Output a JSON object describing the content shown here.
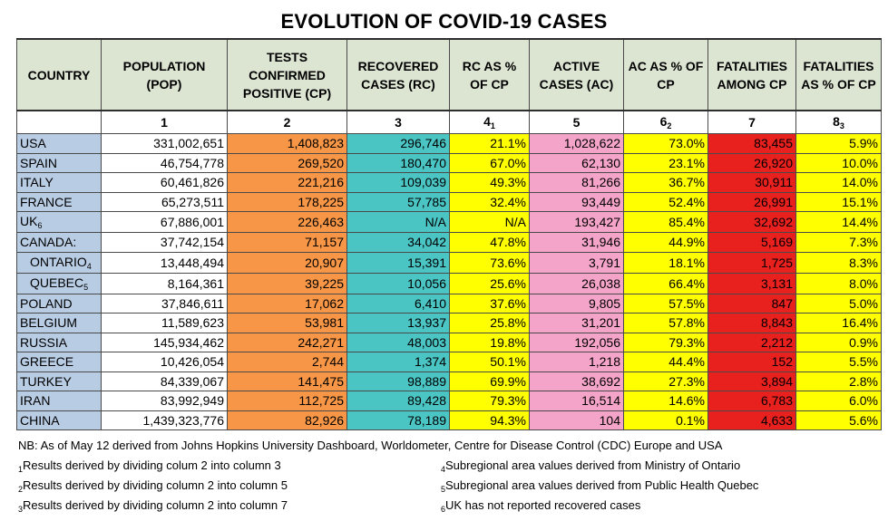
{
  "title": "EVOLUTION OF COVID-19 CASES",
  "columns": [
    {
      "label": "COUNTRY",
      "num": ""
    },
    {
      "label": "POPULATION (POP)",
      "num": "1"
    },
    {
      "label": "TESTS CONFIRMED POSITIVE (CP)",
      "num": "2"
    },
    {
      "label": "RECOVERED CASES (RC)",
      "num": "3"
    },
    {
      "label": "RC AS % OF CP",
      "num": "4",
      "num_sub": "1"
    },
    {
      "label": "ACTIVE CASES (AC)",
      "num": "5"
    },
    {
      "label": "AC AS % OF CP",
      "num": "6",
      "num_sub": "2"
    },
    {
      "label": "FATALITIES AMONG CP",
      "num": "7"
    },
    {
      "label": "FATALITIES AS % OF CP",
      "num": "8",
      "num_sub": "3"
    }
  ],
  "header_lines": [
    [
      "COUNTRY"
    ],
    [
      "POPULATION",
      "(POP)"
    ],
    [
      "TESTS",
      "CONFIRMED",
      "POSITIVE (CP)"
    ],
    [
      "RECOVERED",
      "CASES (RC)"
    ],
    [
      "RC AS %",
      "OF CP"
    ],
    [
      "ACTIVE",
      "CASES (AC)"
    ],
    [
      "AC AS % OF",
      "CP"
    ],
    [
      "FATALITIES",
      "AMONG CP"
    ],
    [
      "FATALITIES",
      "AS % OF CP"
    ]
  ],
  "rows": [
    {
      "country": "USA",
      "country_sub": "",
      "indent": false,
      "pop": "331,002,651",
      "cp": "1,408,823",
      "rc": "296,746",
      "rc_pct": "21.1%",
      "ac": "1,028,622",
      "ac_pct": "73.0%",
      "fat": "83,455",
      "fat_pct": "5.9%"
    },
    {
      "country": "SPAIN",
      "country_sub": "",
      "indent": false,
      "pop": "46,754,778",
      "cp": "269,520",
      "rc": "180,470",
      "rc_pct": "67.0%",
      "ac": "62,130",
      "ac_pct": "23.1%",
      "fat": "26,920",
      "fat_pct": "10.0%"
    },
    {
      "country": "ITALY",
      "country_sub": "",
      "indent": false,
      "pop": "60,461,826",
      "cp": "221,216",
      "rc": "109,039",
      "rc_pct": "49.3%",
      "ac": "81,266",
      "ac_pct": "36.7%",
      "fat": "30,911",
      "fat_pct": "14.0%"
    },
    {
      "country": "FRANCE",
      "country_sub": "",
      "indent": false,
      "pop": "65,273,511",
      "cp": "178,225",
      "rc": "57,785",
      "rc_pct": "32.4%",
      "ac": "93,449",
      "ac_pct": "52.4%",
      "fat": "26,991",
      "fat_pct": "15.1%"
    },
    {
      "country": "UK",
      "country_sub": "6",
      "indent": false,
      "pop": "67,886,001",
      "cp": "226,463",
      "rc": "N/A",
      "rc_pct": "N/A",
      "ac": "193,427",
      "ac_pct": "85.4%",
      "fat": "32,692",
      "fat_pct": "14.4%"
    },
    {
      "country": "CANADA:",
      "country_sub": "",
      "indent": false,
      "pop": "37,742,154",
      "cp": "71,157",
      "rc": "34,042",
      "rc_pct": "47.8%",
      "ac": "31,946",
      "ac_pct": "44.9%",
      "fat": "5,169",
      "fat_pct": "7.3%"
    },
    {
      "country": "ONTARIO",
      "country_sub": "4",
      "indent": true,
      "pop": "13,448,494",
      "cp": "20,907",
      "rc": "15,391",
      "rc_pct": "73.6%",
      "ac": "3,791",
      "ac_pct": "18.1%",
      "fat": "1,725",
      "fat_pct": "8.3%"
    },
    {
      "country": "QUEBEC",
      "country_sub": "5",
      "indent": true,
      "pop": "8,164,361",
      "cp": "39,225",
      "rc": "10,056",
      "rc_pct": "25.6%",
      "ac": "26,038",
      "ac_pct": "66.4%",
      "fat": "3,131",
      "fat_pct": "8.0%"
    },
    {
      "country": "POLAND",
      "country_sub": "",
      "indent": false,
      "pop": "37,846,611",
      "cp": "17,062",
      "rc": "6,410",
      "rc_pct": "37.6%",
      "ac": "9,805",
      "ac_pct": "57.5%",
      "fat": "847",
      "fat_pct": "5.0%"
    },
    {
      "country": "BELGIUM",
      "country_sub": "",
      "indent": false,
      "pop": "11,589,623",
      "cp": "53,981",
      "rc": "13,937",
      "rc_pct": "25.8%",
      "ac": "31,201",
      "ac_pct": "57.8%",
      "fat": "8,843",
      "fat_pct": "16.4%"
    },
    {
      "country": "RUSSIA",
      "country_sub": "",
      "indent": false,
      "pop": "145,934,462",
      "cp": "242,271",
      "rc": "48,003",
      "rc_pct": "19.8%",
      "ac": "192,056",
      "ac_pct": "79.3%",
      "fat": "2,212",
      "fat_pct": "0.9%"
    },
    {
      "country": "GREECE",
      "country_sub": "",
      "indent": false,
      "pop": "10,426,054",
      "cp": "2,744",
      "rc": "1,374",
      "rc_pct": "50.1%",
      "ac": "1,218",
      "ac_pct": "44.4%",
      "fat": "152",
      "fat_pct": "5.5%"
    },
    {
      "country": "TURKEY",
      "country_sub": "",
      "indent": false,
      "pop": "84,339,067",
      "cp": "141,475",
      "rc": "98,889",
      "rc_pct": "69.9%",
      "ac": "38,692",
      "ac_pct": "27.3%",
      "fat": "3,894",
      "fat_pct": "2.8%"
    },
    {
      "country": "IRAN",
      "country_sub": "",
      "indent": false,
      "pop": "83,992,949",
      "cp": "112,725",
      "rc": "89,428",
      "rc_pct": "79.3%",
      "ac": "16,514",
      "ac_pct": "14.6%",
      "fat": "6,783",
      "fat_pct": "6.0%"
    },
    {
      "country": "CHINA",
      "country_sub": "",
      "indent": false,
      "pop": "1,439,323,776",
      "cp": "82,926",
      "rc": "78,189",
      "rc_pct": "94.3%",
      "ac": "104",
      "ac_pct": "0.1%",
      "fat": "4,633",
      "fat_pct": "5.6%"
    }
  ],
  "notes": {
    "nb": "NB: As of May 12  derived from Johns Hopkins University Dashboard, Worldometer, Centre for Disease Control (CDC) Europe and USA",
    "footnotes": [
      {
        "mark": "1",
        "text": "Results derived by dividing colum 2 into column 3"
      },
      {
        "mark": "2",
        "text": "Results derived by dividing column 2 into column 5"
      },
      {
        "mark": "3",
        "text": "Results derived by dividing column 2 into column 7"
      },
      {
        "mark": "4",
        "text": "Subregional area values derived from Ministry of Ontario"
      },
      {
        "mark": "5",
        "text": "Subregional area values derived from Public Health Quebec"
      },
      {
        "mark": "6",
        "text": "UK has not reported recovered cases"
      }
    ]
  },
  "colors": {
    "header_bg": "#dce4d2",
    "country_bg": "#b8cce4",
    "cp_bg": "#f79646",
    "rc_bg": "#4bc4c4",
    "pct_bg": "#ffff00",
    "ac_bg": "#f4a4c8",
    "fatalities_bg": "#e8201e"
  }
}
